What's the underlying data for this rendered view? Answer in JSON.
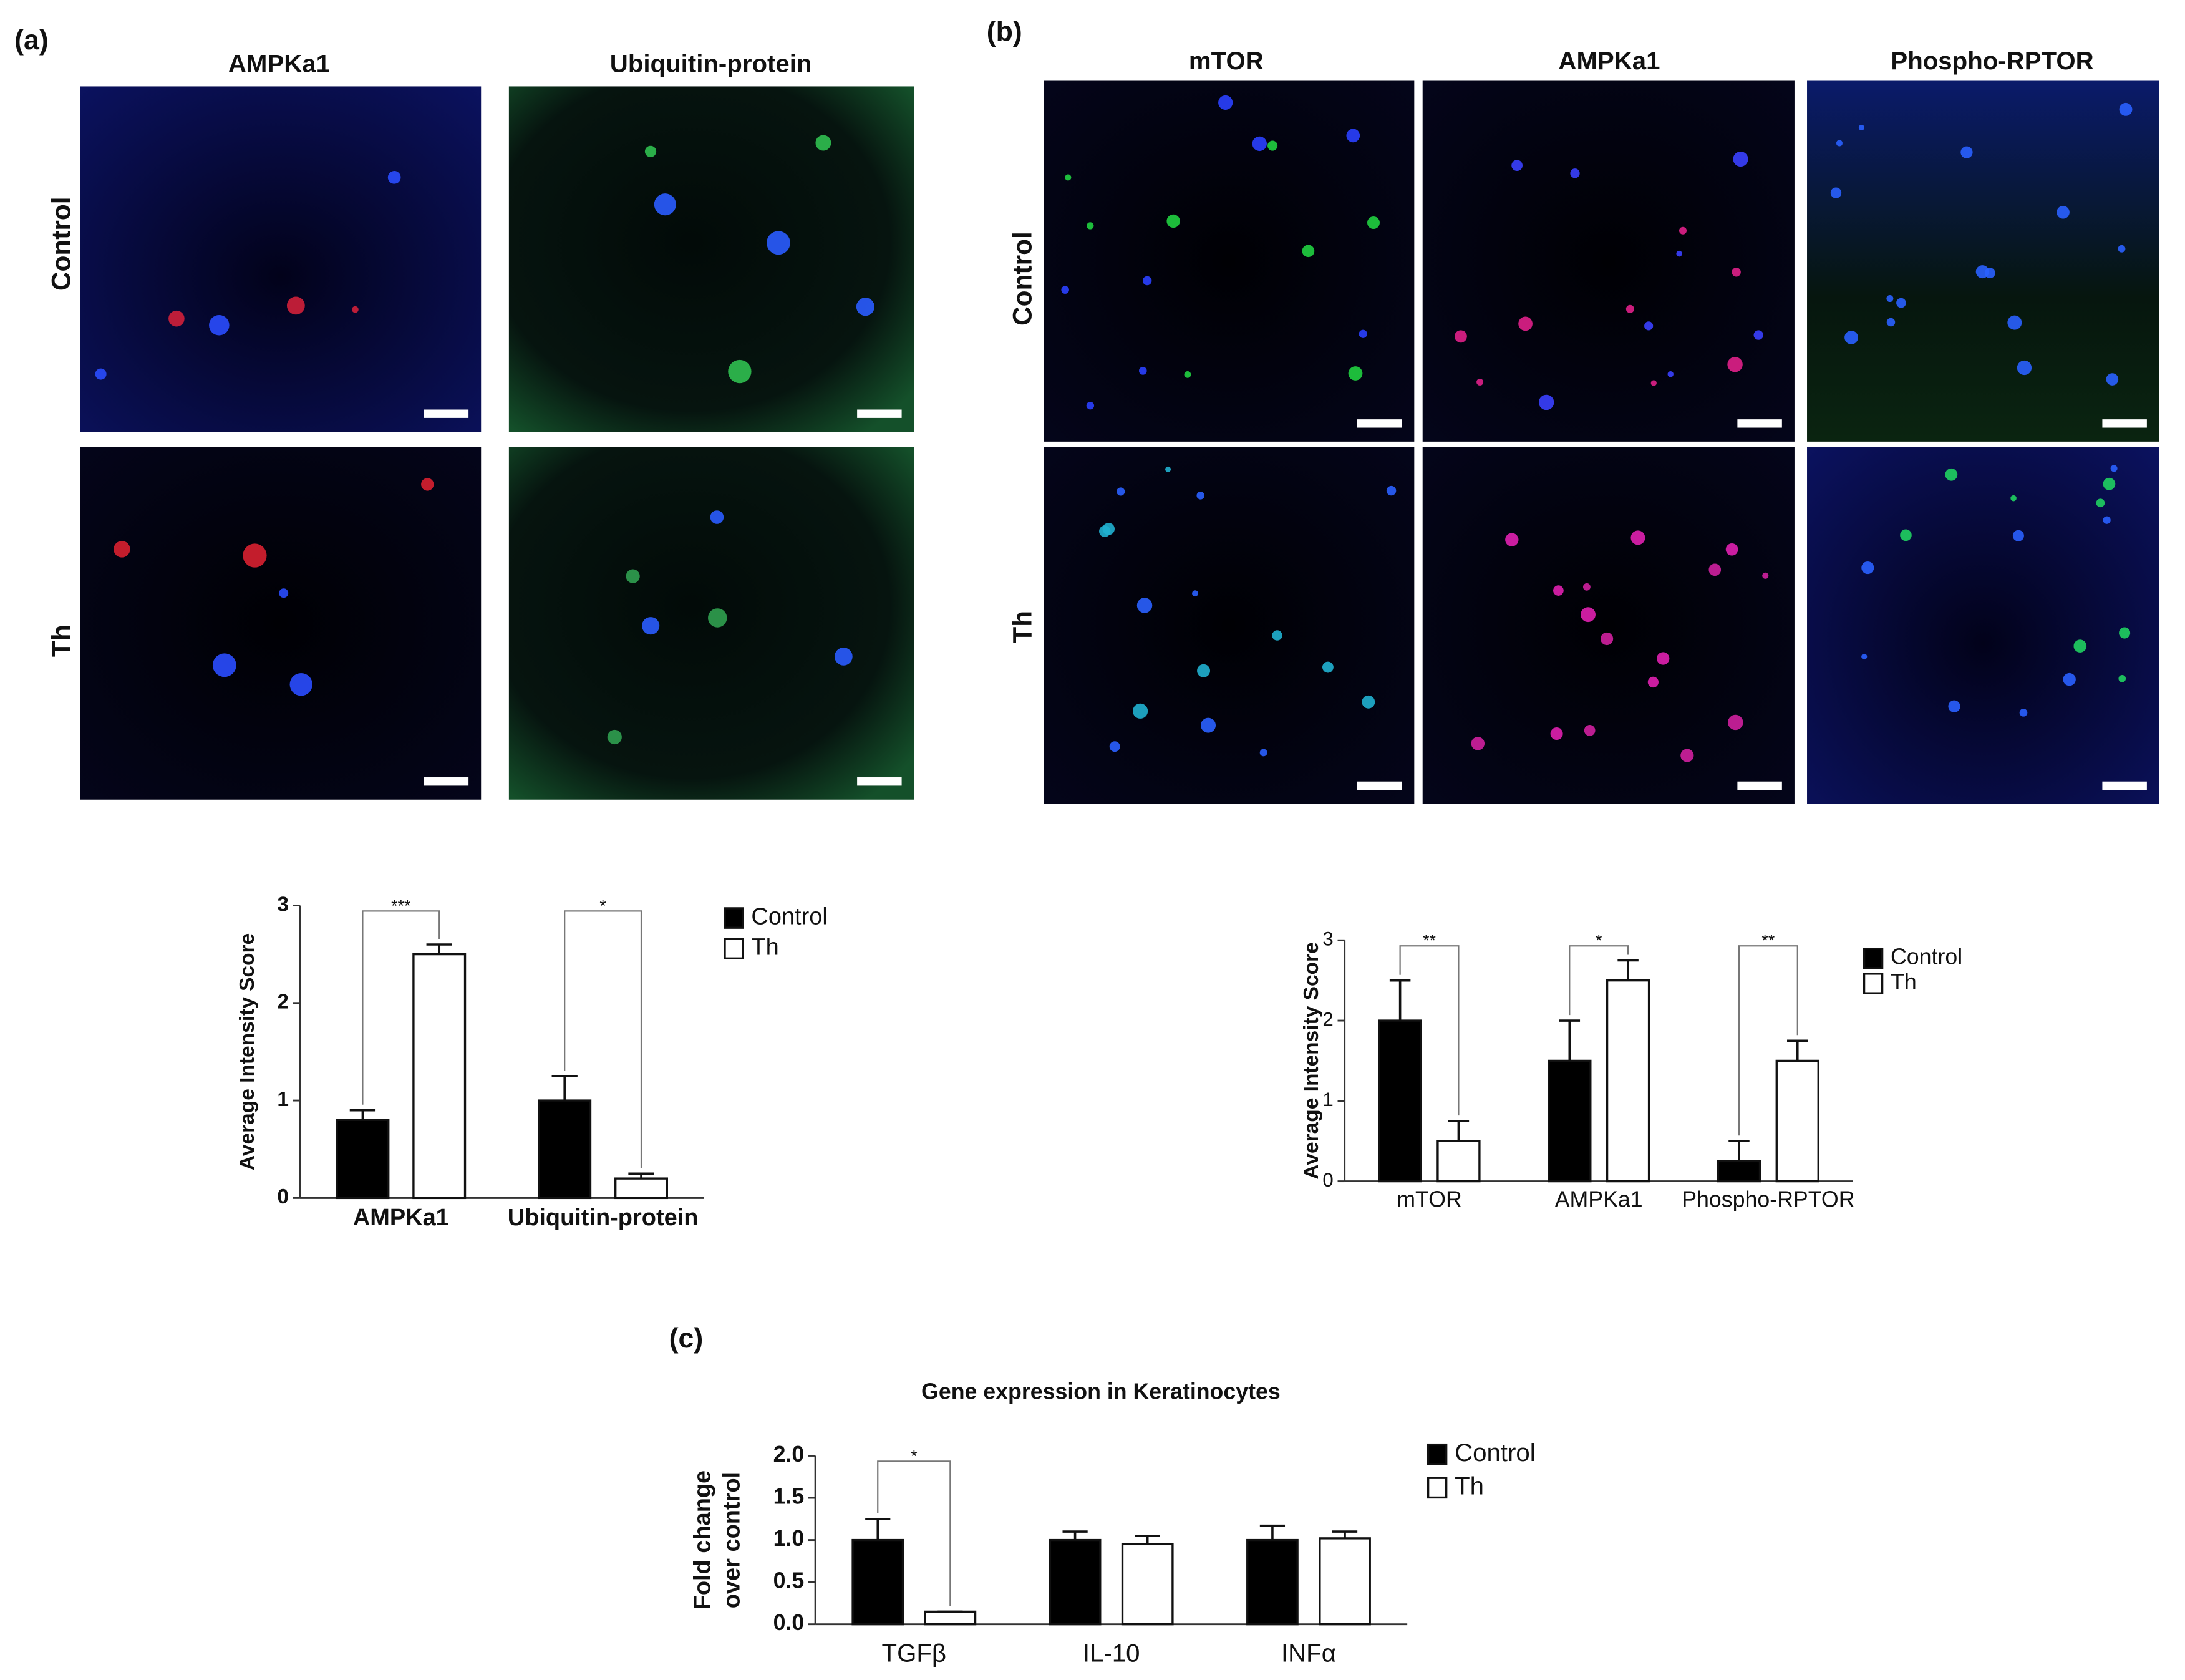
{
  "panels": [
    {
      "label": "(a)",
      "columns": [
        "AMPKa1",
        "Ubiquitin-protein"
      ],
      "rows": [
        "Control",
        "Th"
      ]
    },
    {
      "label": "(b)",
      "columns": [
        "mTOR",
        "AMPKa1",
        "Phospho-RPTOR"
      ],
      "rows": [
        "Control",
        "Th"
      ]
    },
    {
      "label": "(c)"
    }
  ],
  "chart_data": [
    {
      "type": "bar",
      "y_label": "Average Intensity Score",
      "categories": [
        "AMPKa1",
        "Ubiquitin-protein"
      ],
      "series": [
        {
          "name": "Control",
          "color": "#000000",
          "values": [
            0.8,
            1.0
          ],
          "errors": [
            0.1,
            0.25
          ]
        },
        {
          "name": "Th",
          "color": "#ffffff",
          "values": [
            2.5,
            0.2
          ],
          "errors": [
            0.1,
            0.05
          ]
        }
      ],
      "significance": [
        "***",
        "*"
      ],
      "ylim": [
        0,
        3
      ],
      "yticks": [
        0,
        1,
        2,
        3
      ],
      "legend": "right"
    },
    {
      "type": "bar",
      "y_label": "Average Intensity Score",
      "categories": [
        "mTOR",
        "AMPKa1",
        "Phospho-RPTOR"
      ],
      "series": [
        {
          "name": "Control",
          "color": "#000000",
          "values": [
            2.0,
            1.5,
            0.25
          ],
          "errors": [
            0.5,
            0.5,
            0.25
          ]
        },
        {
          "name": "Th",
          "color": "#ffffff",
          "values": [
            0.5,
            2.5,
            1.5
          ],
          "errors": [
            0.25,
            0.25,
            0.25
          ]
        }
      ],
      "significance": [
        "**",
        "*",
        "**"
      ],
      "ylim": [
        0,
        3
      ],
      "yticks": [
        0,
        1,
        2,
        3
      ],
      "legend": "right"
    },
    {
      "type": "bar",
      "title": "Gene expression in Keratinocytes",
      "y_label": [
        "Fold change",
        "over control"
      ],
      "categories": [
        "TGFβ",
        "IL-10",
        "INFα"
      ],
      "series": [
        {
          "name": "Control",
          "color": "#000000",
          "values": [
            1.0,
            1.0,
            1.0
          ],
          "errors": [
            0.25,
            0.1,
            0.17
          ]
        },
        {
          "name": "Th",
          "color": "#ffffff",
          "values": [
            0.15,
            0.95,
            1.02
          ],
          "errors": [
            0.0,
            0.1,
            0.08
          ]
        }
      ],
      "significance": [
        "*",
        null,
        null
      ],
      "ylim": [
        0,
        2
      ],
      "yticks": [
        {
          "value": 0,
          "label": "0.0"
        },
        {
          "value": 0.5,
          "label": "0.5"
        },
        {
          "value": 1,
          "label": "1.0"
        },
        {
          "value": 1.5,
          "label": "1.5"
        },
        {
          "value": 2,
          "label": "2.0"
        }
      ],
      "legend": "right"
    }
  ]
}
